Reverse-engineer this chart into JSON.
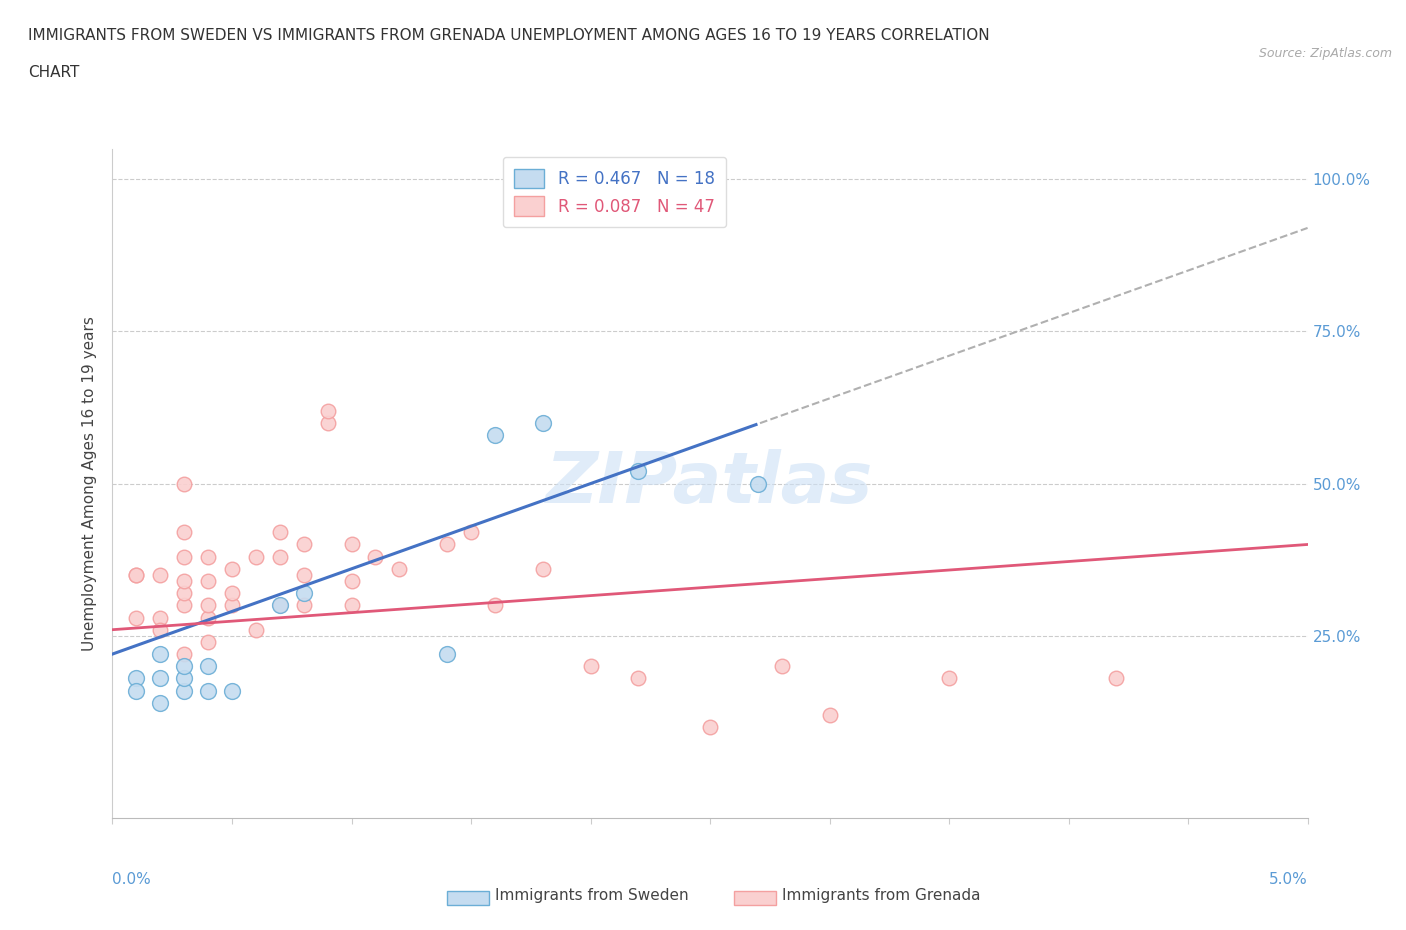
{
  "title_line1": "IMMIGRANTS FROM SWEDEN VS IMMIGRANTS FROM GRENADA UNEMPLOYMENT AMONG AGES 16 TO 19 YEARS CORRELATION",
  "title_line2": "CHART",
  "source": "Source: ZipAtlas.com",
  "ylabel": "Unemployment Among Ages 16 to 19 years",
  "ylabel_right_ticks": [
    "100.0%",
    "75.0%",
    "50.0%",
    "25.0%"
  ],
  "ylabel_right_values": [
    1.0,
    0.75,
    0.5,
    0.25
  ],
  "xlim": [
    0.0,
    0.05
  ],
  "ylim": [
    -0.05,
    1.05
  ],
  "plot_ylim": [
    0.0,
    1.0
  ],
  "sweden_R": 0.467,
  "sweden_N": 18,
  "grenada_R": 0.087,
  "grenada_N": 47,
  "sweden_color_edge": "#6baed6",
  "grenada_color_edge": "#f4a0a0",
  "sweden_color_fill": "#c5dcf0",
  "grenada_color_fill": "#fad0d0",
  "sweden_line_color": "#4472c4",
  "grenada_line_color": "#e05878",
  "watermark": "ZIPatlas",
  "sweden_line_intercept": 0.22,
  "sweden_line_slope": 14.0,
  "grenada_line_intercept": 0.26,
  "grenada_line_slope": 2.8,
  "sweden_points": [
    [
      0.001,
      0.18
    ],
    [
      0.001,
      0.16
    ],
    [
      0.002,
      0.14
    ],
    [
      0.002,
      0.18
    ],
    [
      0.002,
      0.22
    ],
    [
      0.003,
      0.16
    ],
    [
      0.003,
      0.18
    ],
    [
      0.003,
      0.2
    ],
    [
      0.004,
      0.16
    ],
    [
      0.004,
      0.2
    ],
    [
      0.005,
      0.16
    ],
    [
      0.007,
      0.3
    ],
    [
      0.008,
      0.32
    ],
    [
      0.014,
      0.22
    ],
    [
      0.016,
      0.58
    ],
    [
      0.018,
      0.6
    ],
    [
      0.022,
      0.52
    ],
    [
      0.027,
      0.5
    ]
  ],
  "grenada_points": [
    [
      0.001,
      0.35
    ],
    [
      0.001,
      0.35
    ],
    [
      0.001,
      0.28
    ],
    [
      0.002,
      0.28
    ],
    [
      0.002,
      0.26
    ],
    [
      0.002,
      0.35
    ],
    [
      0.003,
      0.3
    ],
    [
      0.003,
      0.32
    ],
    [
      0.003,
      0.34
    ],
    [
      0.003,
      0.38
    ],
    [
      0.003,
      0.42
    ],
    [
      0.003,
      0.5
    ],
    [
      0.003,
      0.22
    ],
    [
      0.004,
      0.28
    ],
    [
      0.004,
      0.3
    ],
    [
      0.004,
      0.34
    ],
    [
      0.004,
      0.38
    ],
    [
      0.004,
      0.24
    ],
    [
      0.005,
      0.3
    ],
    [
      0.005,
      0.32
    ],
    [
      0.005,
      0.36
    ],
    [
      0.006,
      0.26
    ],
    [
      0.006,
      0.38
    ],
    [
      0.007,
      0.3
    ],
    [
      0.007,
      0.38
    ],
    [
      0.007,
      0.42
    ],
    [
      0.008,
      0.3
    ],
    [
      0.008,
      0.35
    ],
    [
      0.008,
      0.4
    ],
    [
      0.009,
      0.6
    ],
    [
      0.009,
      0.62
    ],
    [
      0.01,
      0.3
    ],
    [
      0.01,
      0.34
    ],
    [
      0.01,
      0.4
    ],
    [
      0.011,
      0.38
    ],
    [
      0.012,
      0.36
    ],
    [
      0.014,
      0.4
    ],
    [
      0.015,
      0.42
    ],
    [
      0.016,
      0.3
    ],
    [
      0.018,
      0.36
    ],
    [
      0.02,
      0.2
    ],
    [
      0.022,
      0.18
    ],
    [
      0.025,
      0.1
    ],
    [
      0.028,
      0.2
    ],
    [
      0.03,
      0.12
    ],
    [
      0.035,
      0.18
    ],
    [
      0.042,
      0.18
    ]
  ]
}
